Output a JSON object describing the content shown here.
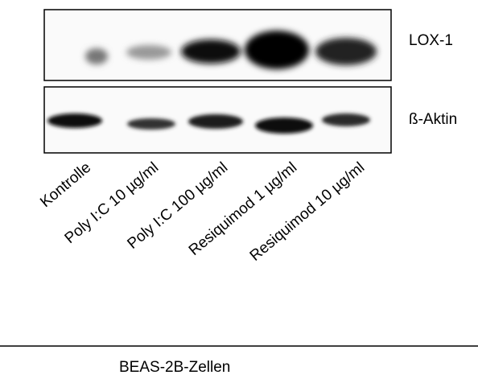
{
  "blot_labels": [
    "LOX-1",
    "ß-Aktin"
  ],
  "lanes": [
    "Kontrolle",
    "Poly I:C 10 µg/ml",
    "Poly I:C 100 µg/ml",
    "Resiquimod 1 µg/ml",
    "Resiquimod 10 µg/ml"
  ],
  "group_label": "BEAS-2B-Zellen"
}
